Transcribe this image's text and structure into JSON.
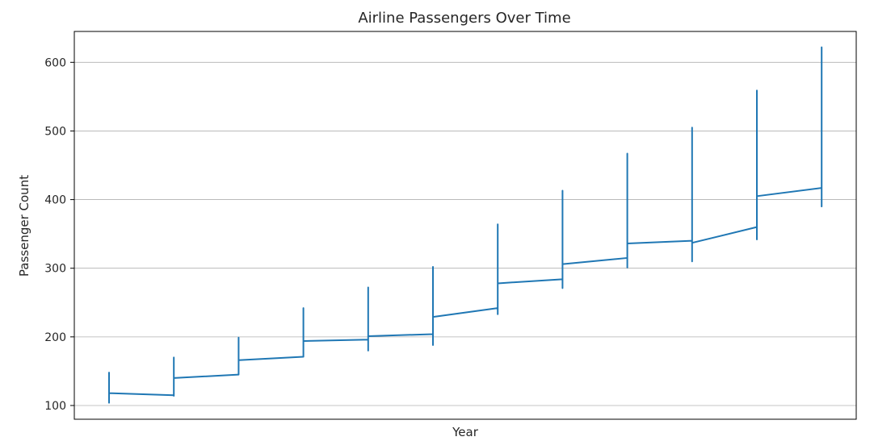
{
  "chart_data": {
    "type": "line",
    "title": "Airline Passengers Over Time",
    "xlabel": "Year",
    "ylabel": "Passenger Count",
    "ylim": [
      80,
      645
    ],
    "yticks": [
      100,
      200,
      300,
      400,
      500,
      600
    ],
    "grid": "y",
    "legend": "none",
    "series_color": "#1f77b4",
    "series": [
      {
        "values": [
          112,
          118,
          132,
          129,
          121,
          135,
          148,
          148,
          136,
          119,
          104,
          118,
          115,
          126,
          141,
          135,
          125,
          149,
          170,
          170,
          158,
          133,
          114,
          140,
          145,
          150,
          178,
          163,
          172,
          178,
          199,
          199,
          184,
          162,
          146,
          166,
          171,
          180,
          193,
          181,
          183,
          218,
          230,
          242,
          209,
          191,
          172,
          194,
          196,
          196,
          236,
          235,
          229,
          243,
          264,
          272,
          237,
          211,
          180,
          201,
          204,
          188,
          235,
          227,
          234,
          264,
          302,
          293,
          259,
          229,
          203,
          229,
          242,
          233,
          267,
          269,
          270,
          315,
          364,
          347,
          312,
          274,
          237,
          278,
          284,
          277,
          317,
          313,
          318,
          374,
          413,
          405,
          355,
          306,
          271,
          306,
          315,
          301,
          356,
          348,
          355,
          422,
          465,
          467,
          404,
          347,
          305,
          336,
          340,
          318,
          362,
          348,
          363,
          435,
          491,
          505,
          404,
          359,
          310,
          337,
          360,
          342,
          406,
          396,
          420,
          472,
          548,
          559,
          463,
          407,
          362,
          405,
          417,
          391,
          419,
          461,
          472,
          535,
          622,
          606,
          508,
          461,
          390,
          432
        ]
      }
    ]
  }
}
